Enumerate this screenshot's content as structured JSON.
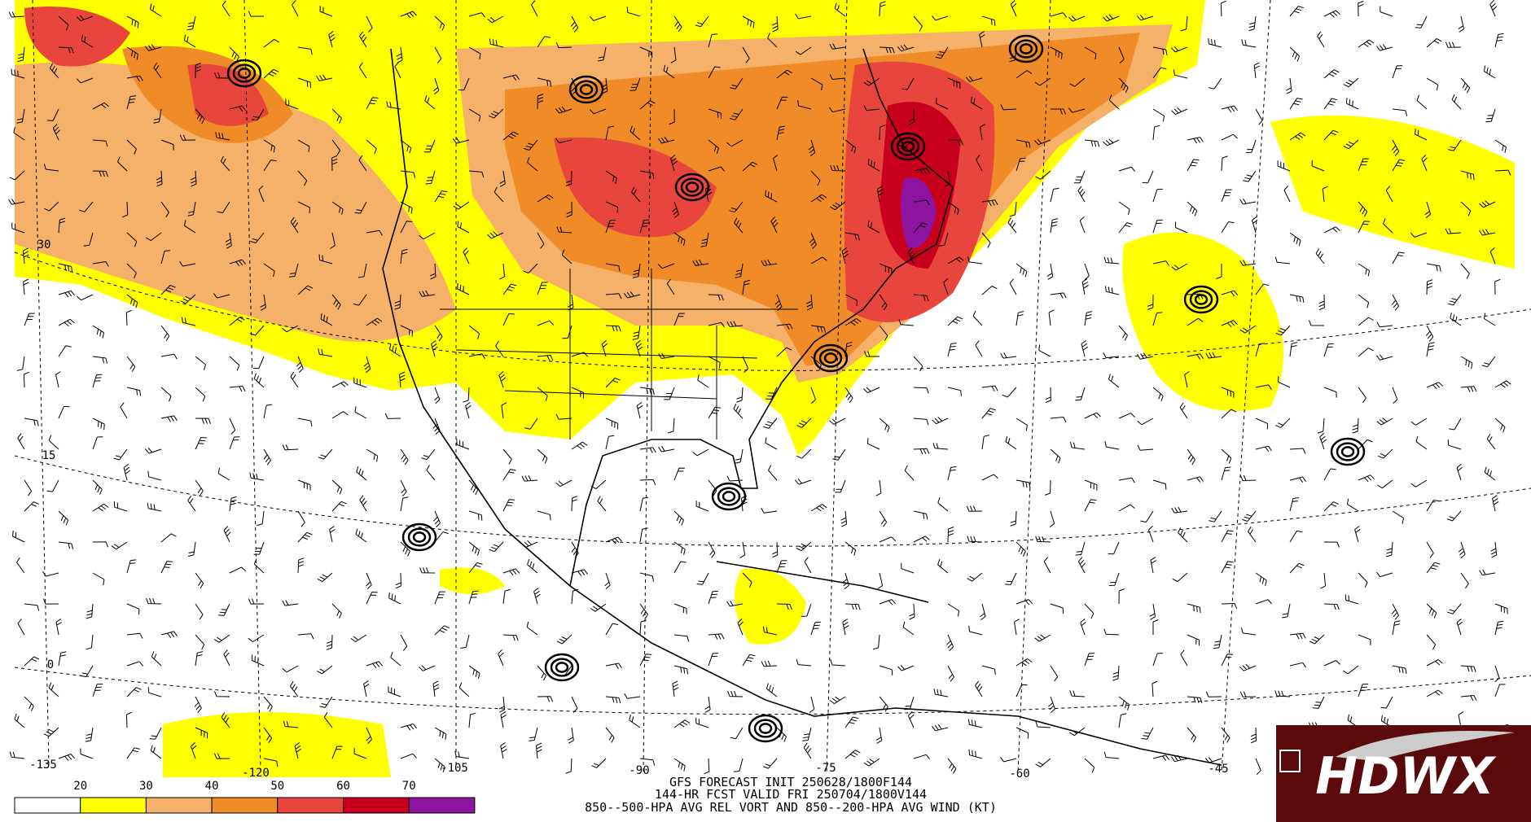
{
  "map": {
    "lat_labels": [
      "30",
      "15",
      "0"
    ],
    "lon_labels": [
      "-135",
      "-120",
      "-105",
      "-90",
      "-75",
      "-60",
      "-45"
    ]
  },
  "colorbar": {
    "levels": [
      20,
      30,
      40,
      50,
      60,
      70
    ],
    "colors": [
      "#ffffff",
      "#ffff00",
      "#f5b06a",
      "#f08c28",
      "#e8463c",
      "#c8001e",
      "#8c14a0"
    ]
  },
  "caption": {
    "line1": "GFS FORECAST INIT 250628/1800F144",
    "line2": "144-HR FCST VALID FRI 250704/1800V144",
    "line3": "850--500-HPA AVG REL VORT AND 850--200-HPA AVG WIND (KT)"
  },
  "logo": {
    "text": "HDWX"
  }
}
